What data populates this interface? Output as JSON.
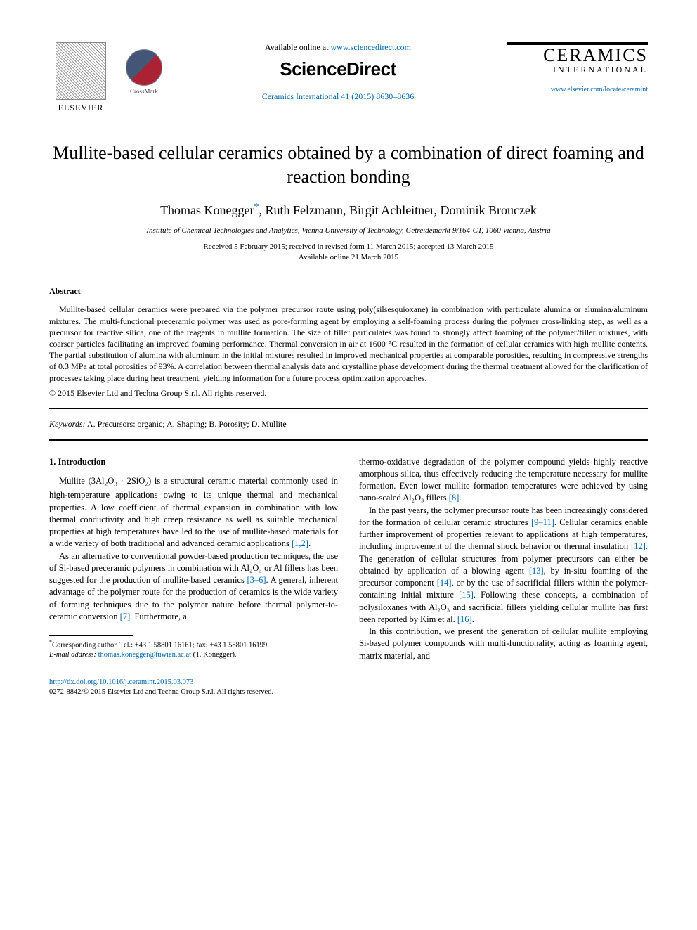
{
  "header": {
    "elsevier_label": "ELSEVIER",
    "crossmark_label": "CrossMark",
    "available_prefix": "Available online at ",
    "available_url": "www.sciencedirect.com",
    "sciencedirect": "ScienceDirect",
    "citation": "Ceramics International 41 (2015) 8630–8636",
    "journal_title": "CERAMICS",
    "journal_sub": "INTERNATIONAL",
    "journal_url": "www.elsevier.com/locate/ceramint"
  },
  "article": {
    "title": "Mullite-based cellular ceramics obtained by a combination of direct foaming and reaction bonding",
    "authors_pre": "Thomas Konegger",
    "authors_post": ", Ruth Felzmann, Birgit Achleitner, Dominik Brouczek",
    "corr_symbol": "*",
    "affiliation": "Institute of Chemical Technologies and Analytics, Vienna University of Technology, Getreidemarkt 9/164-CT, 1060 Vienna, Austria",
    "dates_line1": "Received 5 February 2015; received in revised form 11 March 2015; accepted 13 March 2015",
    "dates_line2": "Available online 21 March 2015"
  },
  "abstract": {
    "heading": "Abstract",
    "body": "Mullite-based cellular ceramics were prepared via the polymer precursor route using poly(silsesquioxane) in combination with particulate alumina or alumina/aluminum mixtures. The multi-functional preceramic polymer was used as pore-forming agent by employing a self-foaming process during the polymer cross-linking step, as well as a precursor for reactive silica, one of the reagents in mullite formation. The size of filler particulates was found to strongly affect foaming of the polymer/filler mixtures, with coarser particles facilitating an improved foaming performance. Thermal conversion in air at 1600 °C resulted in the formation of cellular ceramics with high mullite contents. The partial substitution of alumina with aluminum in the initial mixtures resulted in improved mechanical properties at comparable porosities, resulting in compressive strengths of 0.3 MPa at total porosities of 93%. A correlation between thermal analysis data and crystalline phase development during the thermal treatment allowed for the clarification of processes taking place during heat treatment, yielding information for a future process optimization approaches.",
    "copyright": "© 2015 Elsevier Ltd and Techna Group S.r.l. All rights reserved."
  },
  "keywords": {
    "label": "Keywords:",
    "text": " A. Precursors: organic; A. Shaping; B. Porosity; D. Mullite"
  },
  "intro": {
    "heading": "1. Introduction",
    "p1_a": "Mullite (3Al",
    "p1_b": "O",
    "p1_c": " · 2SiO",
    "p1_d": ") is a structural ceramic material commonly used in high-temperature applications owing to its unique thermal and mechanical properties. A low coefficient of thermal expansion in combination with low thermal conductivity and high creep resistance as well as suitable mechanical properties at high temperatures have led to the use of mullite-based materials for a wide variety of both traditional and advanced ceramic applications ",
    "p1_refs": "[1,2]",
    "p2": "As an alternative to conventional powder-based production techniques, the use of Si-based preceramic polymers in combination with Al₂O₃ or Al fillers has been suggested for the production of mullite-based ceramics ",
    "p2_refs": "[3–6]",
    "p2_b": ". A general, inherent advantage of the polymer route for the production of ceramics is the wide variety of forming techniques due to the polymer nature before thermal polymer-to-ceramic conversion ",
    "p2_ref7": "[7]",
    "p2_c": ". Furthermore, a",
    "col2_p1": "thermo-oxidative degradation of the polymer compound yields highly reactive amorphous silica, thus effectively reducing the temperature necessary for mullite formation. Even lower mullite formation temperatures were achieved by using nano-scaled Al₂O₃ fillers ",
    "col2_ref8": "[8]",
    "col2_p2": "In the past years, the polymer precursor route has been increasingly considered for the formation of cellular ceramic structures ",
    "col2_ref9": "[9–11]",
    "col2_p2b": ". Cellular ceramics enable further improvement of properties relevant to applications at high temperatures, including improvement of the thermal shock behavior or thermal insulation ",
    "col2_ref12": "[12]",
    "col2_p2c": ". The generation of cellular structures from polymer precursors can either be obtained by application of a blowing agent ",
    "col2_ref13": "[13]",
    "col2_p2d": ", by in-situ foaming of the precursor component ",
    "col2_ref14": "[14]",
    "col2_p2e": ", or by the use of sacrificial fillers within the polymer-containing initial mixture ",
    "col2_ref15": "[15]",
    "col2_p2f": ". Following these concepts, a combination of polysiloxanes with Al₂O₃ and sacrificial fillers yielding cellular mullite has first been reported by Kim et al. ",
    "col2_ref16": "[16]",
    "col2_p3": "In this contribution, we present the generation of cellular mullite employing Si-based polymer compounds with multi-functionality, acting as foaming agent, matrix material, and"
  },
  "footnote": {
    "corr": "Corresponding author. Tel.: +43 1 58801 16161; fax: +43 1 58801 16199.",
    "email_label": "E-mail address:",
    "email": "thomas.konegger@tuwien.ac.at",
    "email_suffix": " (T. Konegger)."
  },
  "footer": {
    "doi": "http://dx.doi.org/10.1016/j.ceramint.2015.03.073",
    "issn": "0272-8842/© 2015 Elsevier Ltd and Techna Group S.r.l. All rights reserved."
  },
  "colors": {
    "link": "#0066aa",
    "text": "#000000",
    "background": "#ffffff"
  }
}
